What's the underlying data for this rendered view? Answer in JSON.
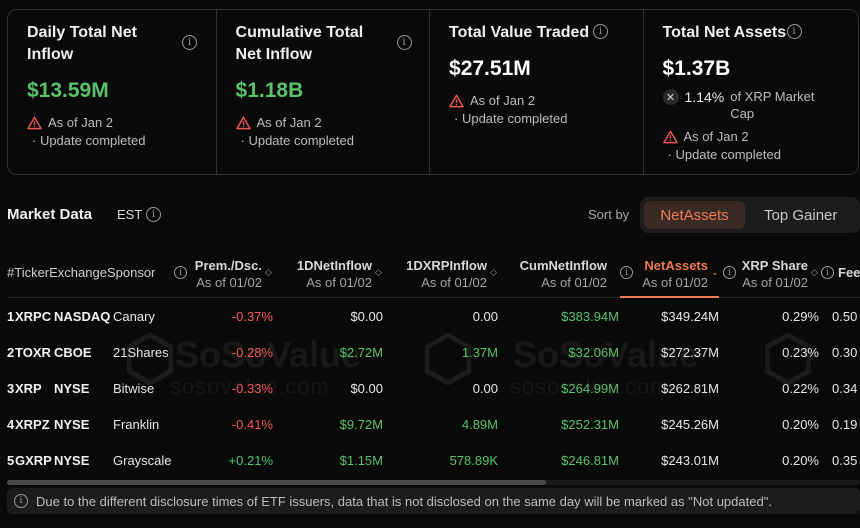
{
  "cards": [
    {
      "title": "Daily Total Net Inflow",
      "value": "$13.59M",
      "note_line1": "As of Jan 2",
      "note_line2": "· Update completed"
    },
    {
      "title": "Cumulative Total Net Inflow",
      "value": "$1.18B",
      "note_line1": "As of Jan 2",
      "note_line2": "· Update completed"
    },
    {
      "title": "Total Value Traded",
      "value": "$27.51M",
      "note_line1": "As of Jan 2",
      "note_line2": "· Update completed"
    },
    {
      "title": "Total Net Assets",
      "value": "$1.37B",
      "share_value": "1.14%",
      "share_label": "of XRP Market Cap",
      "note_line1": "As of Jan 2",
      "note_line2": "· Update completed"
    }
  ],
  "market": {
    "title": "Market Data",
    "timezone": "EST",
    "sort_label": "Sort by",
    "sort_active": "NetAssets",
    "sort_other": "Top Gainer"
  },
  "table": {
    "headers": {
      "num": "#",
      "ticker": "Ticker",
      "exchange": "Exchange",
      "sponsor": "Sponsor",
      "prem": "Prem./Dsc.",
      "inflow": "1DNetInflow",
      "xrpinflow": "1DXRPInflow",
      "cum": "CumNetInflow",
      "netassets": "NetAssets",
      "share": "XRP Share",
      "fee": "Fee",
      "asof": "As of 01/02"
    },
    "rows": [
      {
        "num": "1",
        "ticker": "XRPC",
        "exchange": "NASDAQ",
        "sponsor": "Canary",
        "prem": "-0.37%",
        "inflow": "$0.00",
        "xrpinflow": "0.00",
        "cum": "$383.94M",
        "netassets": "$349.24M",
        "share": "0.29%",
        "fee": "0.50"
      },
      {
        "num": "2",
        "ticker": "TOXR",
        "exchange": "CBOE",
        "sponsor": "21Shares",
        "prem": "-0.28%",
        "inflow": "$2.72M",
        "xrpinflow": "1.37M",
        "cum": "$32.06M",
        "netassets": "$272.37M",
        "share": "0.23%",
        "fee": "0.30"
      },
      {
        "num": "3",
        "ticker": "XRP",
        "exchange": "NYSE",
        "sponsor": "Bitwise",
        "prem": "-0.33%",
        "inflow": "$0.00",
        "xrpinflow": "0.00",
        "cum": "$264.99M",
        "netassets": "$262.81M",
        "share": "0.22%",
        "fee": "0.34"
      },
      {
        "num": "4",
        "ticker": "XRPZ",
        "exchange": "NYSE",
        "sponsor": "Franklin",
        "prem": "-0.41%",
        "inflow": "$9.72M",
        "xrpinflow": "4.89M",
        "cum": "$252.31M",
        "netassets": "$245.26M",
        "share": "0.20%",
        "fee": "0.19"
      },
      {
        "num": "5",
        "ticker": "GXRP",
        "exchange": "NYSE",
        "sponsor": "Grayscale",
        "prem": "+0.21%",
        "inflow": "$1.15M",
        "xrpinflow": "578.89K",
        "cum": "$246.81M",
        "netassets": "$243.01M",
        "share": "0.20%",
        "fee": "0.35"
      }
    ]
  },
  "watermark": {
    "brand": "SoSoValue",
    "site": "sosovalue.com"
  },
  "footer": {
    "text": "Due to the different disclosure times of ETF issuers, data that is not disclosed on the same day will be marked as \"Not updated\"."
  },
  "colors": {
    "positive": "#5ac26b",
    "negative": "#f0595a",
    "accent": "#f07a52"
  }
}
